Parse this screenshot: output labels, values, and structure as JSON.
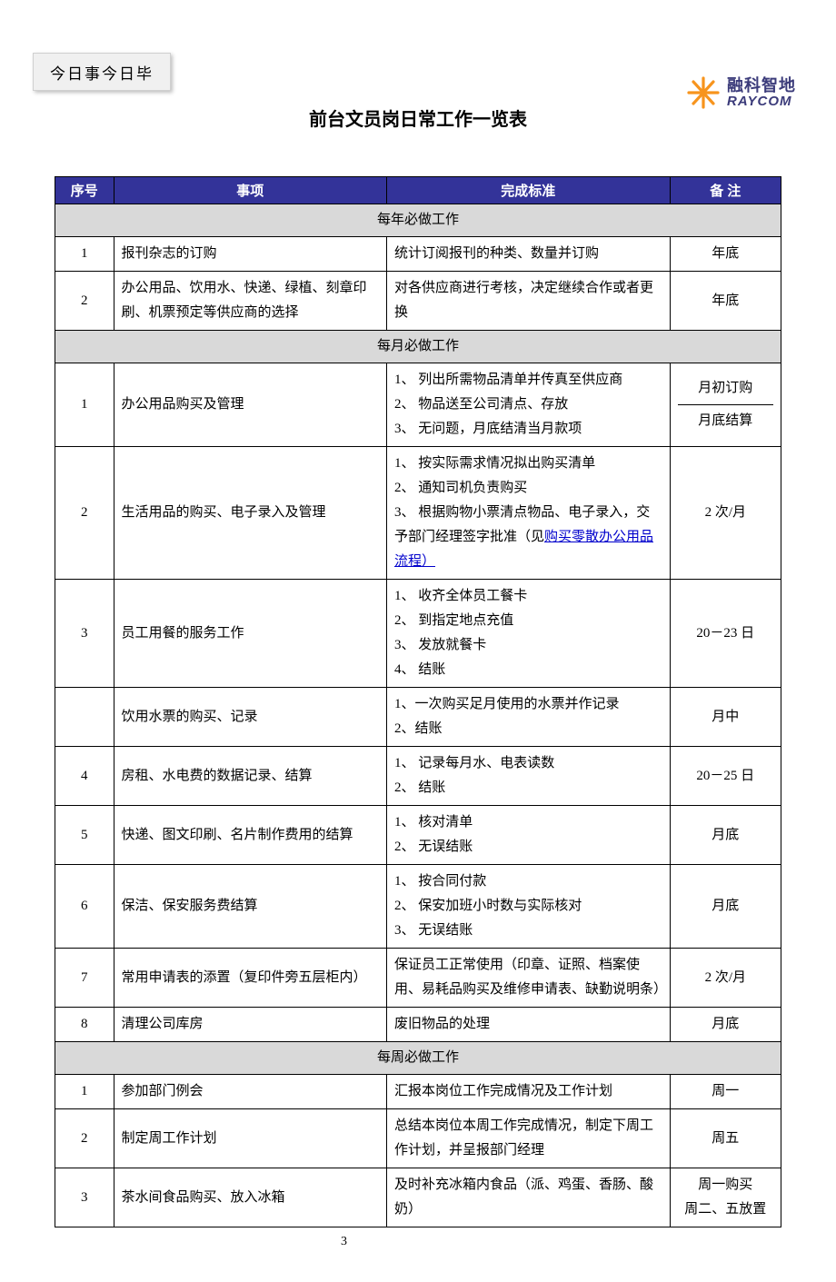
{
  "motto": "今日事今日毕",
  "title": "前台文员岗日常工作一览表",
  "logo": {
    "cn": "融科智地",
    "en": "RAYCOM"
  },
  "colors": {
    "header_bg": "#333399",
    "header_fg": "#ffffff",
    "section_bg": "#d9d9d9",
    "border": "#000000",
    "link": "#0000cc",
    "logo_text": "#3b3b7a",
    "logo_orange": "#f7941d"
  },
  "page_number": "3",
  "columns": [
    "序号",
    "事项",
    "完成标准",
    "备  注"
  ],
  "sections": [
    {
      "heading": "每年必做工作",
      "rows": [
        {
          "num": "1",
          "item": "报刊杂志的订购",
          "standard": "统计订阅报刊的种类、数量并订购",
          "note": "年底"
        },
        {
          "num": "2",
          "item": "办公用品、饮用水、快递、绿植、刻章印刷、机票预定等供应商的选择",
          "standard": "对各供应商进行考核，决定继续合作或者更换",
          "note": "年底"
        }
      ]
    },
    {
      "heading": "每月必做工作",
      "rows": [
        {
          "num": "1",
          "item": "办公用品购买及管理",
          "standard": "1、 列出所需物品清单并传真至供应商\n2、 物品送至公司清点、存放\n3、 无问题，月底结清当月款项",
          "note_split": [
            "月初订购",
            "月底结算"
          ]
        },
        {
          "num": "2",
          "item": "生活用品的购买、电子录入及管理",
          "standard": "1、 按实际需求情况拟出购买清单\n2、 通知司机负责购买\n3、 根据购物小票清点物品、电子录入，交予部门经理签字批准（见",
          "standard_link_text": "购买零散办公用品流程）",
          "note": "2 次/月"
        },
        {
          "num": "3",
          "item": "员工用餐的服务工作",
          "standard": "1、 收齐全体员工餐卡\n2、 到指定地点充值\n3、 发放就餐卡\n4、 结账",
          "note": "20－23 日"
        },
        {
          "num": "",
          "item": "饮用水票的购买、记录",
          "standard": "1、一次购买足月使用的水票并作记录\n2、结账",
          "note": "月中"
        },
        {
          "num": "4",
          "item": "房租、水电费的数据记录、结算",
          "standard": "1、 记录每月水、电表读数\n2、 结账",
          "note": "20－25 日"
        },
        {
          "num": "5",
          "item": "快递、图文印刷、名片制作费用的结算",
          "standard": "1、 核对清单\n2、 无误结账",
          "note": "月底"
        },
        {
          "num": "6",
          "item": "保洁、保安服务费结算",
          "standard": "1、 按合同付款\n2、 保安加班小时数与实际核对\n3、 无误结账",
          "note": "月底"
        },
        {
          "num": "7",
          "item": "常用申请表的添置（复印件旁五层柜内）",
          "standard": "保证员工正常使用（印章、证照、档案使用、易耗品购买及维修申请表、缺勤说明条）",
          "note": "2 次/月"
        },
        {
          "num": "8",
          "item": "清理公司库房",
          "standard": "废旧物品的处理",
          "note": "月底"
        }
      ]
    },
    {
      "heading": "每周必做工作",
      "rows": [
        {
          "num": "1",
          "item": "参加部门例会",
          "standard": "汇报本岗位工作完成情况及工作计划",
          "note": "周一"
        },
        {
          "num": "2",
          "item": "制定周工作计划",
          "standard": "总结本岗位本周工作完成情况，制定下周工作计划，并呈报部门经理",
          "note": "周五"
        },
        {
          "num": "3",
          "item": "茶水间食品购买、放入冰箱",
          "standard": "及时补充冰箱内食品（派、鸡蛋、香肠、酸奶）",
          "note": "周一购买\n周二、五放置"
        }
      ]
    }
  ]
}
